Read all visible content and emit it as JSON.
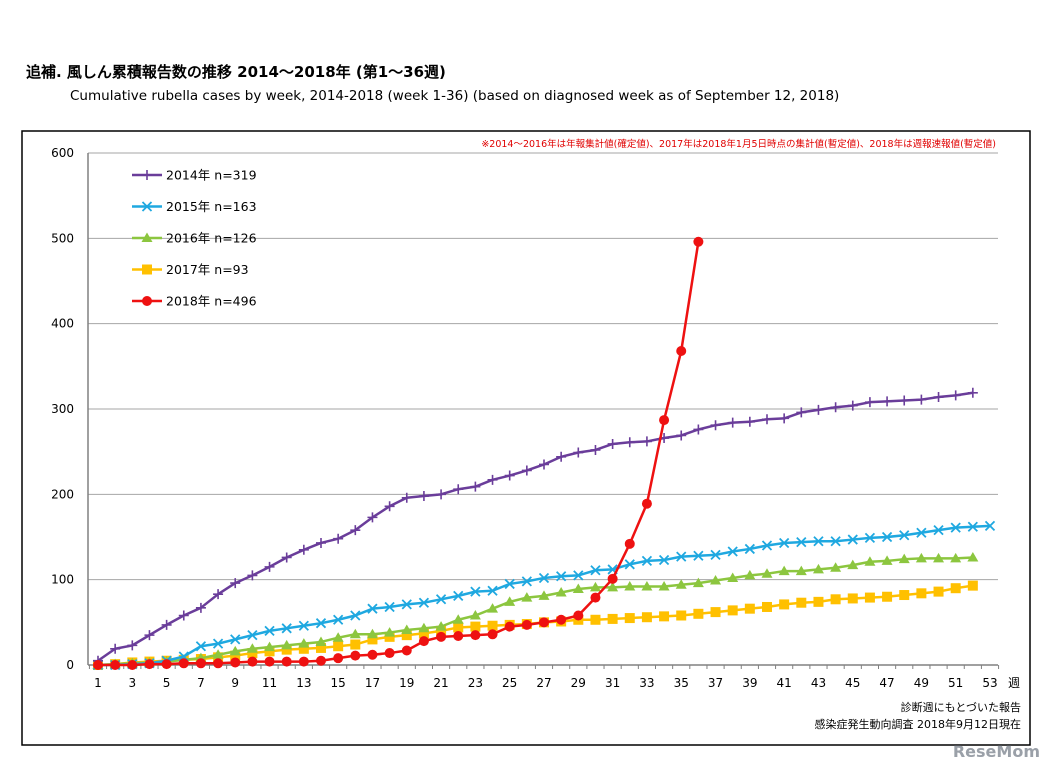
{
  "title": "追補. 風しん累積報告数の推移  2014～2018年 (第1～36週)",
  "subtitle": "Cumulative rubella cases by week, 2014-2018 (week 1-36)  (based on diagnosed week as of September 12, 2018)",
  "note": "※2014～2016年は年報集計値(確定値)、2017年は2018年1月5日時点の集計値(暫定値)、2018年は週報速報値(暫定値)",
  "source_lines": [
    "診断週にもとづいた報告",
    "感染症発生動向調査 2018年9月12日現在"
  ],
  "watermark": "ReseMom",
  "chart_data": {
    "type": "line",
    "xlabel": "週",
    "ylabel": "",
    "ylim": [
      0,
      600
    ],
    "yticks": [
      0,
      100,
      200,
      300,
      400,
      500,
      600
    ],
    "xlim": [
      1,
      53
    ],
    "xtick_labels": [
      "1",
      "3",
      "5",
      "7",
      "9",
      "11",
      "13",
      "15",
      "17",
      "19",
      "21",
      "23",
      "25",
      "27",
      "29",
      "31",
      "33",
      "35",
      "37",
      "39",
      "41",
      "43",
      "45",
      "47",
      "49",
      "51",
      "53"
    ],
    "grid": "horizontal",
    "legend_position": "top-left",
    "series": [
      {
        "name": "2014年 n=319",
        "color": "#6a3d9a",
        "marker": "plus",
        "values": [
          5,
          19,
          23,
          35,
          47,
          58,
          67,
          83,
          96,
          105,
          115,
          126,
          135,
          143,
          148,
          158,
          173,
          186,
          196,
          198,
          200,
          206,
          209,
          217,
          222,
          228,
          235,
          244,
          249,
          252,
          259,
          261,
          262,
          266,
          269,
          276,
          281,
          284,
          285,
          288,
          289,
          296,
          299,
          302,
          304,
          308,
          309,
          310,
          311,
          314,
          316,
          319
        ]
      },
      {
        "name": "2015年 n=163",
        "color": "#1fa8e0",
        "marker": "x",
        "values": [
          0,
          0,
          1,
          2,
          5,
          10,
          22,
          25,
          30,
          35,
          40,
          43,
          46,
          49,
          53,
          58,
          66,
          68,
          71,
          73,
          77,
          81,
          86,
          87,
          95,
          98,
          102,
          104,
          105,
          111,
          112,
          118,
          122,
          123,
          127,
          128,
          129,
          133,
          136,
          140,
          143,
          144,
          145,
          145,
          147,
          149,
          150,
          152,
          155,
          158,
          161,
          162,
          163
        ]
      },
      {
        "name": "2016年 n=126",
        "color": "#8cc63f",
        "marker": "triangle",
        "values": [
          0,
          1,
          2,
          3,
          4,
          6,
          8,
          12,
          16,
          19,
          21,
          23,
          25,
          27,
          32,
          36,
          36,
          38,
          41,
          43,
          45,
          53,
          58,
          66,
          74,
          79,
          81,
          85,
          89,
          91,
          91,
          92,
          92,
          92,
          94,
          96,
          99,
          102,
          105,
          107,
          110,
          110,
          112,
          114,
          117,
          121,
          122,
          124,
          125,
          125,
          125,
          126
        ]
      },
      {
        "name": "2017年 n=93",
        "color": "#ffc000",
        "marker": "square",
        "values": [
          0,
          1,
          3,
          4,
          5,
          6,
          7,
          9,
          11,
          14,
          16,
          18,
          19,
          20,
          22,
          24,
          30,
          33,
          35,
          37,
          40,
          44,
          45,
          46,
          47,
          48,
          50,
          51,
          53,
          53,
          54,
          55,
          56,
          57,
          58,
          60,
          62,
          64,
          66,
          68,
          71,
          73,
          74,
          77,
          78,
          79,
          80,
          82,
          84,
          86,
          90,
          93
        ]
      },
      {
        "name": "2018年 n=496",
        "color": "#ee1111",
        "marker": "circle",
        "values": [
          0,
          0,
          0,
          1,
          1,
          2,
          2,
          2,
          3,
          4,
          4,
          4,
          4,
          5,
          8,
          11,
          12,
          14,
          17,
          28,
          33,
          34,
          35,
          36,
          45,
          47,
          50,
          53,
          58,
          79,
          101,
          142,
          189,
          287,
          368,
          496
        ]
      }
    ]
  }
}
